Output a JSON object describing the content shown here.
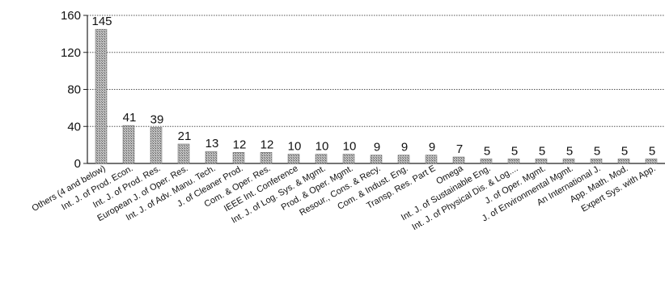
{
  "chart_data": {
    "type": "bar",
    "categories": [
      "Others (4 and below)",
      "Int. J. of Prod. Econ.",
      "Int. J. of Prod. Res.",
      "European J. of Oper. Res.",
      "Int. J. of Adv. Manu. Tech.",
      "J. of Cleaner Prod.",
      "Com. & Oper. Res.",
      "IEEE Int. Conference",
      "Int. J. of Log. Sys. & Mgmt.",
      "Prod. & Oper. Mgmt.",
      "Resour., Cons. & Recy.",
      "Com. & Indust. Eng.",
      "Transp. Res. Part E",
      "Omega",
      "Int. J. of Sustainable Eng.",
      "Int. J. of Physical Dis. & Log....",
      "J. of Oper. Mgmt.",
      "J. of Environmental Mgmt.",
      "An International J.",
      "App. Math. Mod.",
      "Expert Sys. with App."
    ],
    "values": [
      145,
      41,
      39,
      21,
      13,
      12,
      12,
      10,
      10,
      10,
      9,
      9,
      9,
      7,
      5,
      5,
      5,
      5,
      5,
      5,
      5
    ],
    "data_labels": [
      "145",
      "41",
      "39",
      "21",
      "13",
      "12",
      "12",
      "10",
      "10",
      "10",
      "9",
      "9",
      "9",
      "7",
      "5",
      "5",
      "5",
      "5",
      "5",
      "5",
      "5"
    ],
    "ylim": [
      0,
      160
    ],
    "y_ticks": [
      "0",
      "40",
      "80",
      "120",
      "160"
    ],
    "grid": true,
    "title": "",
    "xlabel": "",
    "ylabel": ""
  }
}
